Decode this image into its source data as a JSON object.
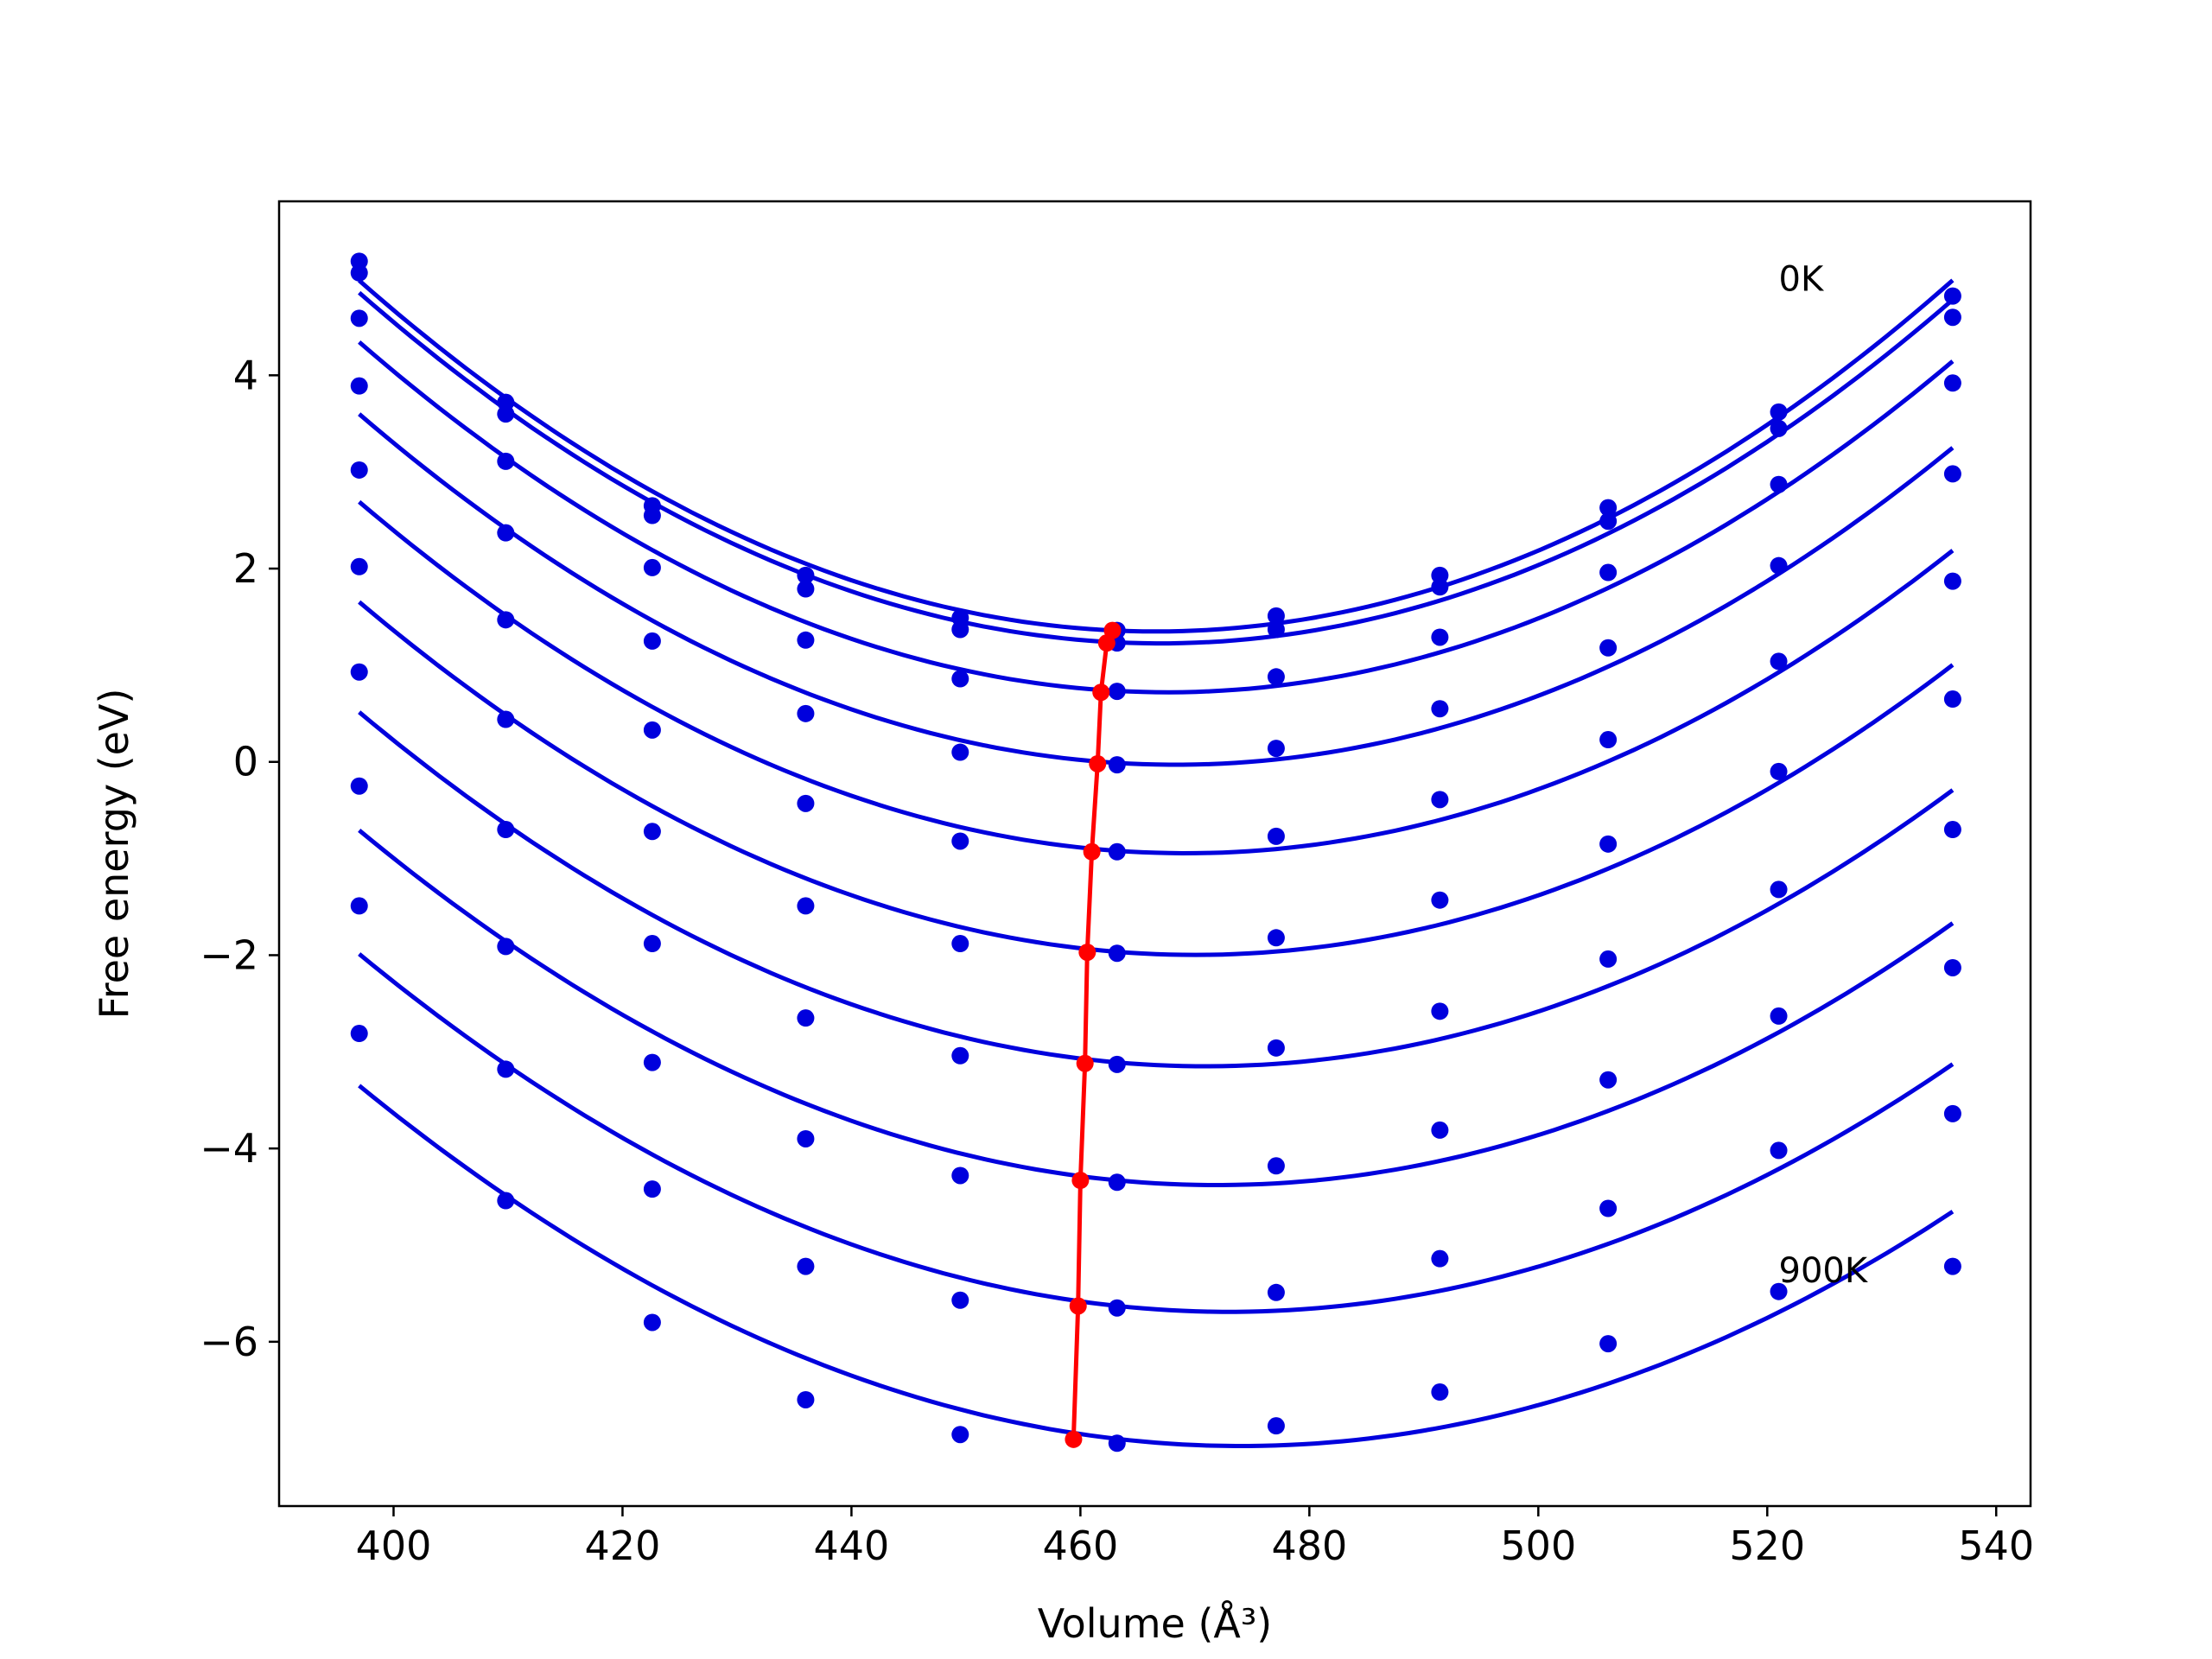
{
  "chart_data": {
    "type": "line",
    "title": "",
    "xlabel": "Volume (Å³)",
    "ylabel": "Free energy (eV)",
    "xlim": [
      390,
      543
    ],
    "ylim": [
      -7.7,
      5.8
    ],
    "xticks": [
      400,
      420,
      440,
      460,
      480,
      500,
      520,
      540
    ],
    "yticks": [
      -6,
      -4,
      -2,
      0,
      2,
      4
    ],
    "ytick_labels": [
      "−6",
      "−4",
      "−2",
      "0",
      "2",
      "4"
    ],
    "grid": false,
    "legend": "none",
    "x": [
      397.0,
      409.8,
      422.6,
      436.0,
      449.5,
      463.2,
      477.1,
      491.4,
      506.1,
      521.0,
      536.2
    ],
    "series": [
      {
        "values": [
          5.18,
          3.72,
          2.65,
          1.93,
          1.49,
          1.36,
          1.51,
          1.93,
          2.63,
          3.62,
          4.82
        ],
        "min": [
          462.8,
          1.36
        ]
      },
      {
        "values": [
          5.06,
          3.6,
          2.55,
          1.79,
          1.37,
          1.23,
          1.37,
          1.81,
          2.49,
          3.45,
          4.6
        ],
        "min": [
          462.3,
          1.23
        ]
      },
      {
        "values": [
          4.59,
          3.11,
          2.01,
          1.26,
          0.86,
          0.73,
          0.88,
          1.29,
          1.96,
          2.87,
          3.92
        ],
        "min": [
          461.8,
          0.72
        ]
      },
      {
        "values": [
          3.89,
          2.37,
          1.25,
          0.5,
          0.1,
          -0.03,
          0.14,
          0.55,
          1.18,
          2.03,
          2.98
        ],
        "min": [
          461.5,
          -0.02
        ]
      },
      {
        "values": [
          3.02,
          1.47,
          0.33,
          -0.43,
          -0.82,
          -0.93,
          -0.77,
          -0.39,
          0.23,
          1.04,
          1.87
        ],
        "min": [
          461.0,
          -0.93
        ]
      },
      {
        "values": [
          2.02,
          0.44,
          -0.72,
          -1.49,
          -1.88,
          -1.98,
          -1.82,
          -1.43,
          -0.85,
          -0.1,
          0.65
        ],
        "min": [
          460.6,
          -1.97
        ]
      },
      {
        "values": [
          0.93,
          -0.7,
          -1.88,
          -2.65,
          -3.04,
          -3.13,
          -2.96,
          -2.58,
          -2.04,
          -1.32,
          -0.7
        ],
        "min": [
          460.4,
          -3.12
        ]
      },
      {
        "values": [
          -0.25,
          -1.91,
          -3.11,
          -3.9,
          -4.28,
          -4.35,
          -4.18,
          -3.81,
          -3.29,
          -2.63,
          -2.13
        ],
        "min": [
          460.0,
          -4.33
        ]
      },
      {
        "values": [
          -1.49,
          -3.18,
          -4.42,
          -5.22,
          -5.57,
          -5.65,
          -5.49,
          -5.14,
          -4.62,
          -4.02,
          -3.64
        ],
        "min": [
          459.8,
          -5.63
        ]
      },
      {
        "values": [
          -2.81,
          -4.54,
          -5.8,
          -6.6,
          -6.96,
          -7.05,
          -6.87,
          -6.52,
          -6.02,
          -5.48,
          -5.22
        ],
        "min": [
          459.4,
          -7.01
        ]
      }
    ],
    "colors": {
      "curves": "#0000dd",
      "minimum_line": "#ff0000"
    },
    "annotations": [
      {
        "text": "0K",
        "x": 521.0,
        "y": 5.0
      },
      {
        "text": "900K",
        "x": 521.0,
        "y": -5.26
      }
    ]
  }
}
